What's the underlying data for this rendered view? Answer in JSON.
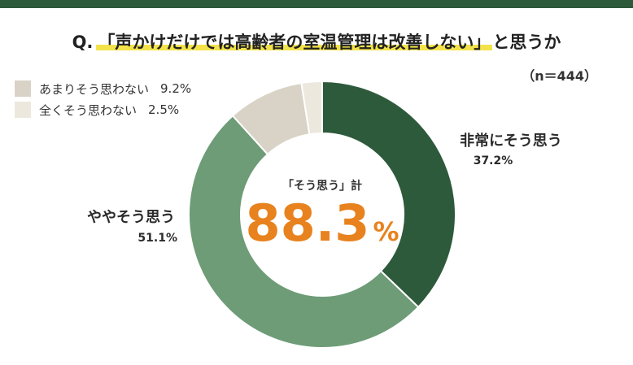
{
  "title": {
    "prefix": "Q.",
    "quote": "「声かけだけでは高齢者の室温管理は改善しない」",
    "suffix": "と思うか"
  },
  "sample": "（n＝444）",
  "legend": [
    {
      "label": "あまりそう思わない",
      "value": "9.2%",
      "color": "#d8d3c6"
    },
    {
      "label": "全くそう思わない",
      "value": "2.5%",
      "color": "#ece8de"
    }
  ],
  "center": {
    "caption": "「そう思う」計",
    "value": "88.3",
    "unit": "%"
  },
  "chart_data": {
    "type": "pie",
    "donut": true,
    "categories": [
      "非常にそう思う",
      "ややそう思う",
      "あまりそう思わない",
      "全くそう思わない"
    ],
    "values": [
      37.2,
      51.1,
      9.2,
      2.5
    ],
    "colors": [
      "#2e5a3c",
      "#6d9c77",
      "#d8d3c6",
      "#ece8de"
    ],
    "value_labels": [
      "37.2%",
      "51.1%",
      "9.2%",
      "2.5%"
    ],
    "combined_label": "「そう思う」計",
    "combined_value": 88.3
  }
}
